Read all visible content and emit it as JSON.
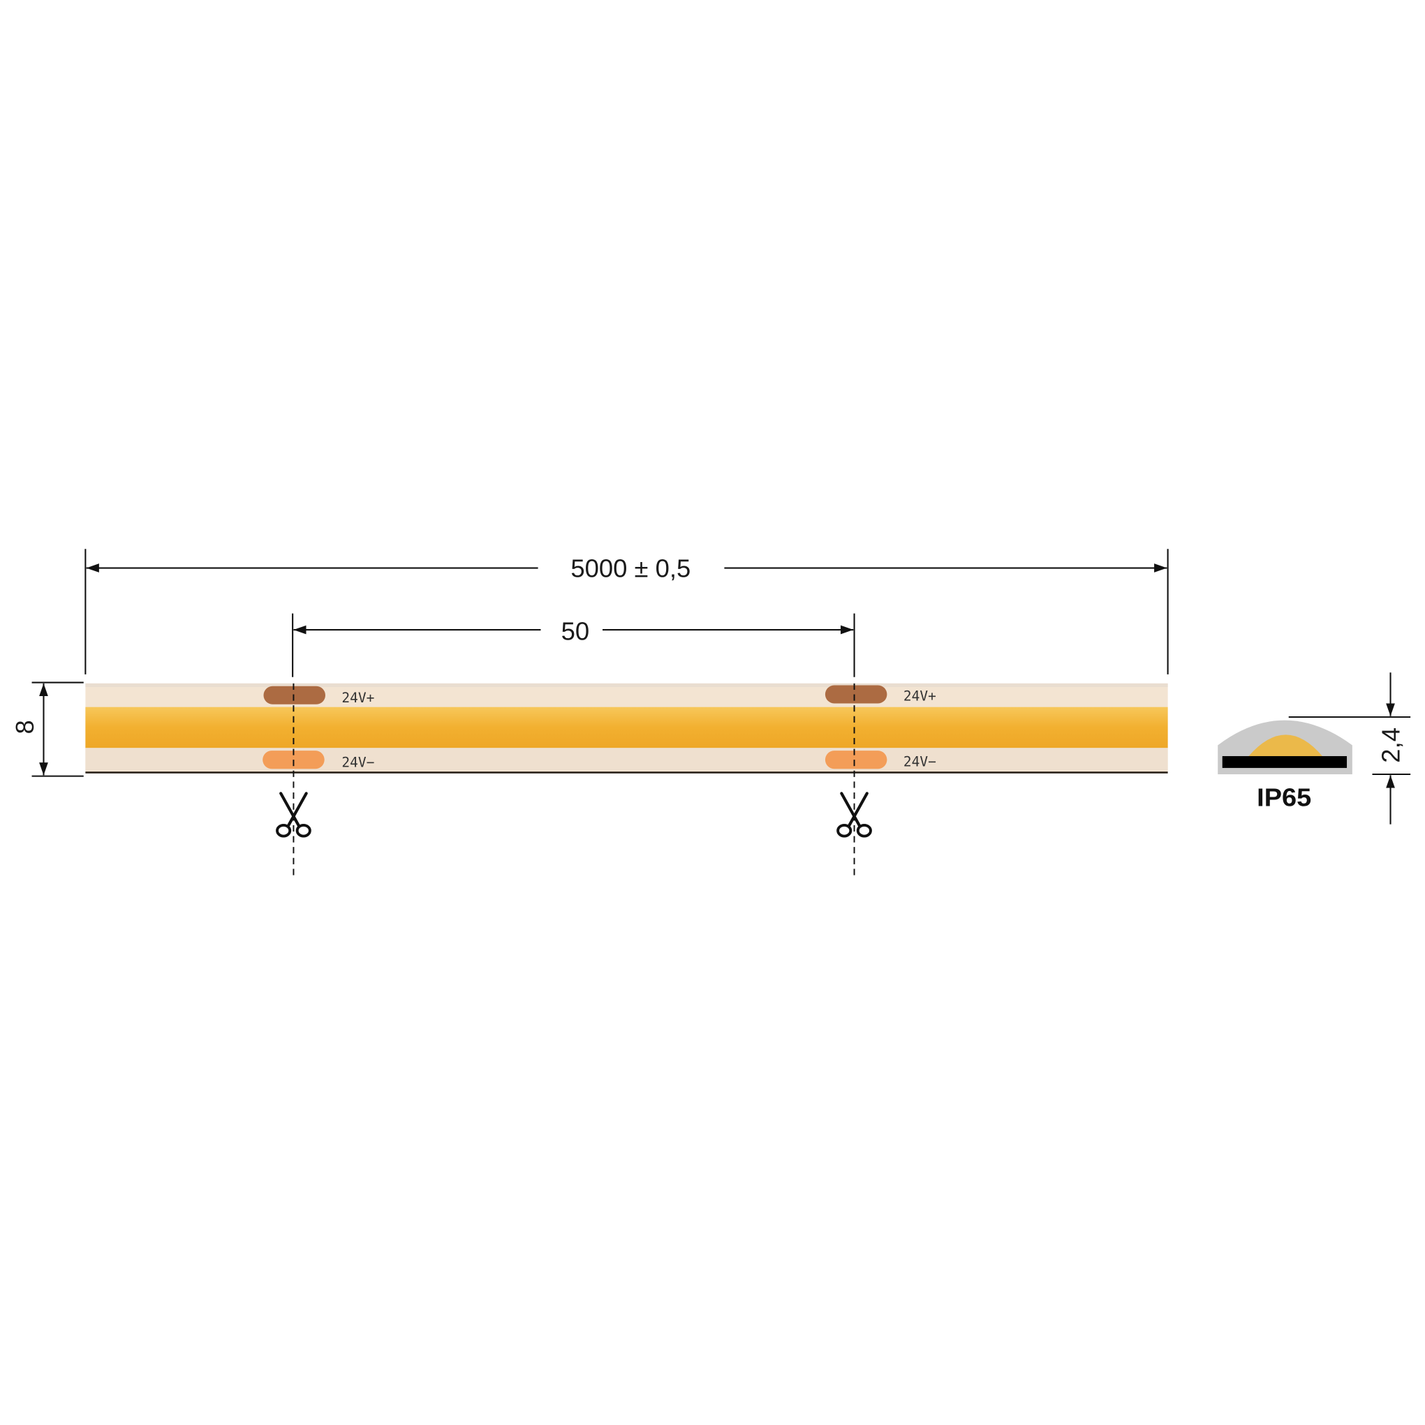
{
  "dimensions": {
    "length": "5000 ± 0,5",
    "cut_pitch": "50",
    "width": "8",
    "height": "2,4"
  },
  "pads": {
    "positive": "24V+",
    "negative": "24V−"
  },
  "cross_section": {
    "rating": "IP65"
  },
  "colors": {
    "strip_base": "#f3e3d0",
    "cob_band": "#f2b23a",
    "pad_positive": "#a9683f",
    "pad_negative": "#f29a55",
    "profile_grey": "#c9c9c9",
    "profile_yellow": "#ebb94a"
  },
  "icons": [
    "scissors-icon",
    "scissors-icon"
  ]
}
